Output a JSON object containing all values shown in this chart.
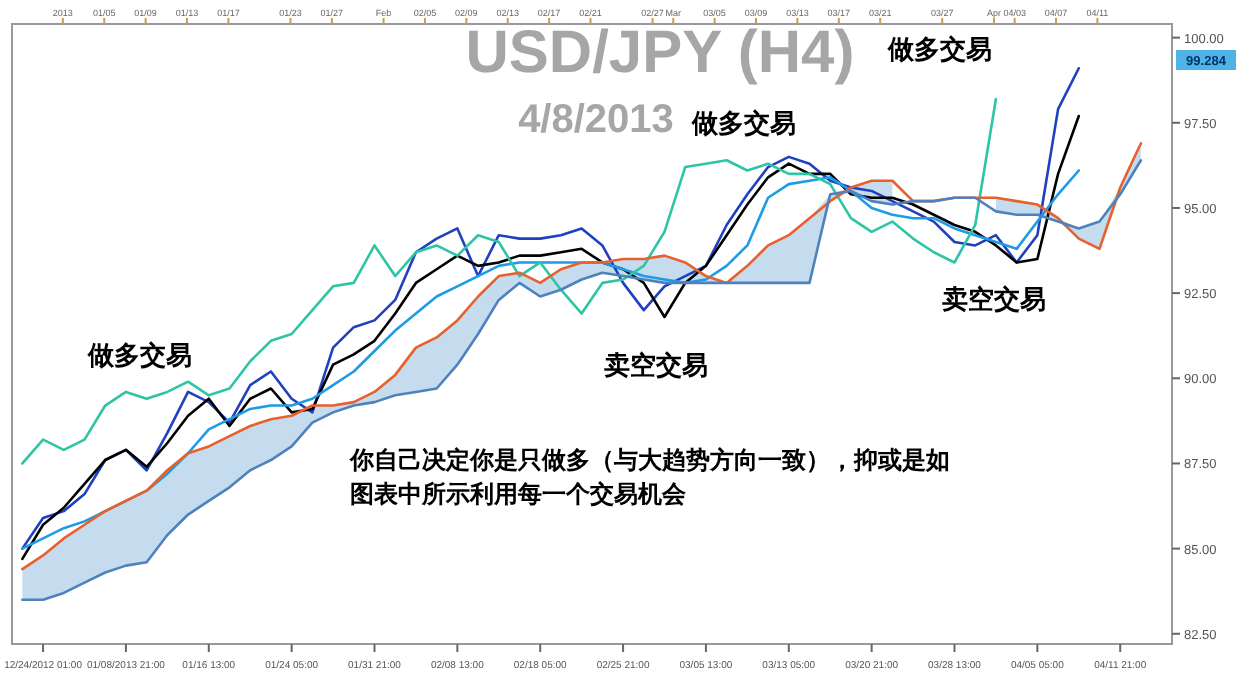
{
  "chart_data": {
    "type": "line",
    "title": "USD/JPY (H4)",
    "subtitle": "4/8/2013",
    "categories": [
      null,
      "12/24/2012 01:00",
      null,
      null,
      null,
      "01/08/2013 21:00",
      null,
      null,
      null,
      "01/16 13:00",
      null,
      null,
      null,
      "01/24 05:00",
      null,
      null,
      null,
      "01/31 21:00",
      null,
      null,
      null,
      "02/08 13:00",
      null,
      null,
      null,
      "02/18 05:00",
      null,
      null,
      null,
      "02/25 21:00",
      null,
      null,
      null,
      "03/05 13:00",
      null,
      null,
      null,
      "03/13 05:00",
      null,
      null,
      null,
      "03/20 21:00",
      null,
      null,
      null,
      "03/28 13:00",
      null,
      null,
      null,
      "04/05 05:00",
      null,
      null,
      null,
      "04/11 21:00",
      null,
      null
    ],
    "x2lim": [
      "2012-12-27T02:00",
      "2013-04-18T05:00"
    ],
    "x2ticks": [
      {
        "value": "2013-01-01",
        "label": "2013"
      },
      {
        "value": "2013-01-05",
        "label": "01/05"
      },
      {
        "value": "2013-01-09",
        "label": "01/09"
      },
      {
        "value": "2013-01-13",
        "label": "01/13"
      },
      {
        "value": "2013-01-17",
        "label": "01/17"
      },
      {
        "value": "2013-01-23",
        "label": "01/23"
      },
      {
        "value": "2013-01-27",
        "label": "01/27"
      },
      {
        "value": "2013-02-01",
        "label": "Feb"
      },
      {
        "value": "2013-02-05",
        "label": "02/05"
      },
      {
        "value": "2013-02-09",
        "label": "02/09"
      },
      {
        "value": "2013-02-13",
        "label": "02/13"
      },
      {
        "value": "2013-02-17",
        "label": "02/17"
      },
      {
        "value": "2013-02-21",
        "label": "02/21"
      },
      {
        "value": "2013-02-27",
        "label": "02/27"
      },
      {
        "value": "2013-03-01",
        "label": "Mar"
      },
      {
        "value": "2013-03-05",
        "label": "03/05"
      },
      {
        "value": "2013-03-09",
        "label": "03/09"
      },
      {
        "value": "2013-03-13",
        "label": "03/13"
      },
      {
        "value": "2013-03-17",
        "label": "03/17"
      },
      {
        "value": "2013-03-21",
        "label": "03/21"
      },
      {
        "value": "2013-03-27",
        "label": "03/27"
      },
      {
        "value": "2013-04-01",
        "label": "Apr"
      },
      {
        "value": "2013-04-03",
        "label": "04/03"
      },
      {
        "value": "2013-04-07",
        "label": "04/07"
      },
      {
        "value": "2013-04-11",
        "label": "04/11"
      }
    ],
    "ylim": [
      82.2,
      100.4
    ],
    "yticks": [
      {
        "value": 100,
        "label": "100.00"
      },
      {
        "value": 97.5,
        "label": "97.50"
      },
      {
        "value": 95,
        "label": "95.00"
      },
      {
        "value": 92.5,
        "label": "92.50"
      },
      {
        "value": 90,
        "label": "90.00"
      },
      {
        "value": 87.5,
        "label": "87.50"
      },
      {
        "value": 85,
        "label": "85.00"
      },
      {
        "value": 82.5,
        "label": "82.50"
      }
    ],
    "series": [
      {
        "color": "#2040c0",
        "values": [
          85.0,
          85.9,
          86.1,
          86.6,
          87.6,
          87.9,
          87.3,
          88.4,
          89.6,
          89.3,
          88.7,
          89.8,
          90.2,
          89.4,
          89.0,
          90.9,
          91.5,
          91.7,
          92.3,
          93.7,
          94.1,
          94.4,
          93.0,
          94.2,
          94.1,
          94.1,
          94.2,
          94.4,
          93.9,
          92.8,
          92.0,
          92.7,
          93.0,
          93.3,
          94.5,
          95.4,
          96.2,
          96.5,
          96.3,
          95.8,
          95.6,
          95.5,
          95.2,
          94.9,
          94.6,
          94.0,
          93.9,
          94.2,
          93.4,
          94.2,
          97.9,
          99.1,
          null,
          null,
          null,
          null
        ]
      },
      {
        "color": "#000000",
        "values": [
          84.7,
          85.7,
          86.2,
          86.9,
          87.6,
          87.9,
          87.4,
          88.1,
          88.9,
          89.4,
          88.6,
          89.4,
          89.7,
          89.0,
          89.1,
          90.4,
          90.7,
          91.1,
          91.9,
          92.8,
          93.2,
          93.6,
          93.3,
          93.4,
          93.6,
          93.6,
          93.7,
          93.8,
          93.4,
          93.2,
          92.8,
          91.8,
          92.8,
          93.3,
          94.2,
          95.1,
          95.9,
          96.3,
          96.0,
          96.0,
          95.4,
          95.3,
          95.3,
          95.1,
          94.8,
          94.5,
          94.3,
          93.9,
          93.4,
          93.5,
          96.0,
          97.7,
          null,
          null,
          null,
          null
        ]
      },
      {
        "color": "#1e9be6",
        "values": [
          85.0,
          85.3,
          85.6,
          85.8,
          86.1,
          86.4,
          86.7,
          87.2,
          87.8,
          88.5,
          88.8,
          89.1,
          89.2,
          89.2,
          89.4,
          89.8,
          90.2,
          90.8,
          91.4,
          91.9,
          92.4,
          92.7,
          93.0,
          93.3,
          93.4,
          93.4,
          93.4,
          93.4,
          93.4,
          93.2,
          93.0,
          92.9,
          92.8,
          92.9,
          93.3,
          93.9,
          95.3,
          95.7,
          95.8,
          95.9,
          95.5,
          95.0,
          94.8,
          94.7,
          94.7,
          94.4,
          94.2,
          94.0,
          93.8,
          94.6,
          95.4,
          96.1,
          null,
          null,
          null,
          null
        ]
      },
      {
        "color": "#2ec4a6",
        "values": [
          87.5,
          88.2,
          87.9,
          88.2,
          89.2,
          89.6,
          89.4,
          89.6,
          89.9,
          89.5,
          89.7,
          90.5,
          91.1,
          91.3,
          92.0,
          92.7,
          92.8,
          93.9,
          93.0,
          93.7,
          93.9,
          93.6,
          94.2,
          94.0,
          93.0,
          93.4,
          92.6,
          91.9,
          92.8,
          92.9,
          93.3,
          94.3,
          96.2,
          96.3,
          96.4,
          96.1,
          96.3,
          96.0,
          96.0,
          95.7,
          94.7,
          94.3,
          94.6,
          94.1,
          93.7,
          93.4,
          94.5,
          98.2,
          null,
          null,
          null,
          null,
          null,
          null,
          null,
          null
        ]
      },
      {
        "color": "#e8602c",
        "values": [
          84.4,
          84.8,
          85.3,
          85.7,
          86.1,
          86.4,
          86.7,
          87.3,
          87.8,
          88.0,
          88.3,
          88.6,
          88.8,
          88.9,
          89.2,
          89.2,
          89.3,
          89.6,
          90.1,
          90.9,
          91.2,
          91.7,
          92.4,
          93.0,
          93.1,
          92.8,
          93.2,
          93.4,
          93.4,
          93.5,
          93.5,
          93.6,
          93.4,
          93.0,
          92.8,
          93.3,
          93.9,
          94.2,
          94.7,
          95.2,
          95.6,
          95.8,
          95.8,
          95.2,
          95.2,
          95.3,
          95.3,
          95.3,
          95.2,
          95.1,
          94.7,
          94.1,
          93.8,
          95.6,
          96.9,
          null
        ]
      },
      {
        "color": "#4f81bd",
        "values": [
          83.5,
          83.5,
          83.7,
          84.0,
          84.3,
          84.5,
          84.6,
          85.4,
          86.0,
          86.4,
          86.8,
          87.3,
          87.6,
          88.0,
          88.7,
          89.0,
          89.2,
          89.3,
          89.5,
          89.6,
          89.7,
          90.4,
          91.3,
          92.3,
          92.8,
          92.4,
          92.6,
          92.9,
          93.1,
          93.0,
          92.9,
          92.8,
          92.8,
          92.8,
          92.8,
          92.8,
          92.8,
          92.8,
          92.8,
          95.4,
          95.5,
          95.2,
          95.1,
          95.2,
          95.2,
          95.3,
          95.3,
          94.9,
          94.8,
          94.8,
          94.6,
          94.4,
          94.6,
          95.4,
          96.4,
          null
        ],
        "lower": [
          83.5,
          83.5,
          83.7,
          84.0,
          84.3,
          84.5,
          84.6,
          85.4,
          86.0,
          86.4,
          86.8,
          87.3,
          87.6,
          88.0,
          88.7,
          89.0,
          89.2,
          89.3,
          89.5,
          89.6,
          89.7,
          90.4,
          91.3,
          92.3,
          92.8,
          92.4,
          92.6,
          92.9,
          93.1,
          93.0,
          92.9,
          92.8,
          92.8,
          92.8,
          92.8,
          92.8,
          92.8,
          92.8,
          92.8,
          95.2,
          95.5,
          95.2,
          95.1,
          null,
          null,
          null,
          null,
          94.9,
          94.8,
          94.8,
          94.6,
          94.1,
          93.8,
          95.4,
          96.4,
          null
        ],
        "upper": [
          84.4,
          84.8,
          85.3,
          85.7,
          86.1,
          86.4,
          86.7,
          87.3,
          87.8,
          88.0,
          88.3,
          88.6,
          88.8,
          88.9,
          89.2,
          89.2,
          89.3,
          89.6,
          90.1,
          90.9,
          91.2,
          91.7,
          92.4,
          93.0,
          93.1,
          92.8,
          93.2,
          93.4,
          93.4,
          93.5,
          93.5,
          93.6,
          93.4,
          93.0,
          92.8,
          93.3,
          93.9,
          94.2,
          94.7,
          95.4,
          95.6,
          95.8,
          95.8,
          null,
          null,
          null,
          null,
          95.3,
          95.2,
          95.1,
          94.7,
          94.4,
          94.6,
          95.6,
          96.9,
          null
        ]
      }
    ],
    "annotations": [
      "做多交易",
      "卖空交易",
      "做多交易",
      "做多交易",
      "卖空交易",
      "你自己决定你是只做多（与大趋势方向一致），抑或是如图表中所示利用每一个交易机会",
      "99.284"
    ]
  }
}
